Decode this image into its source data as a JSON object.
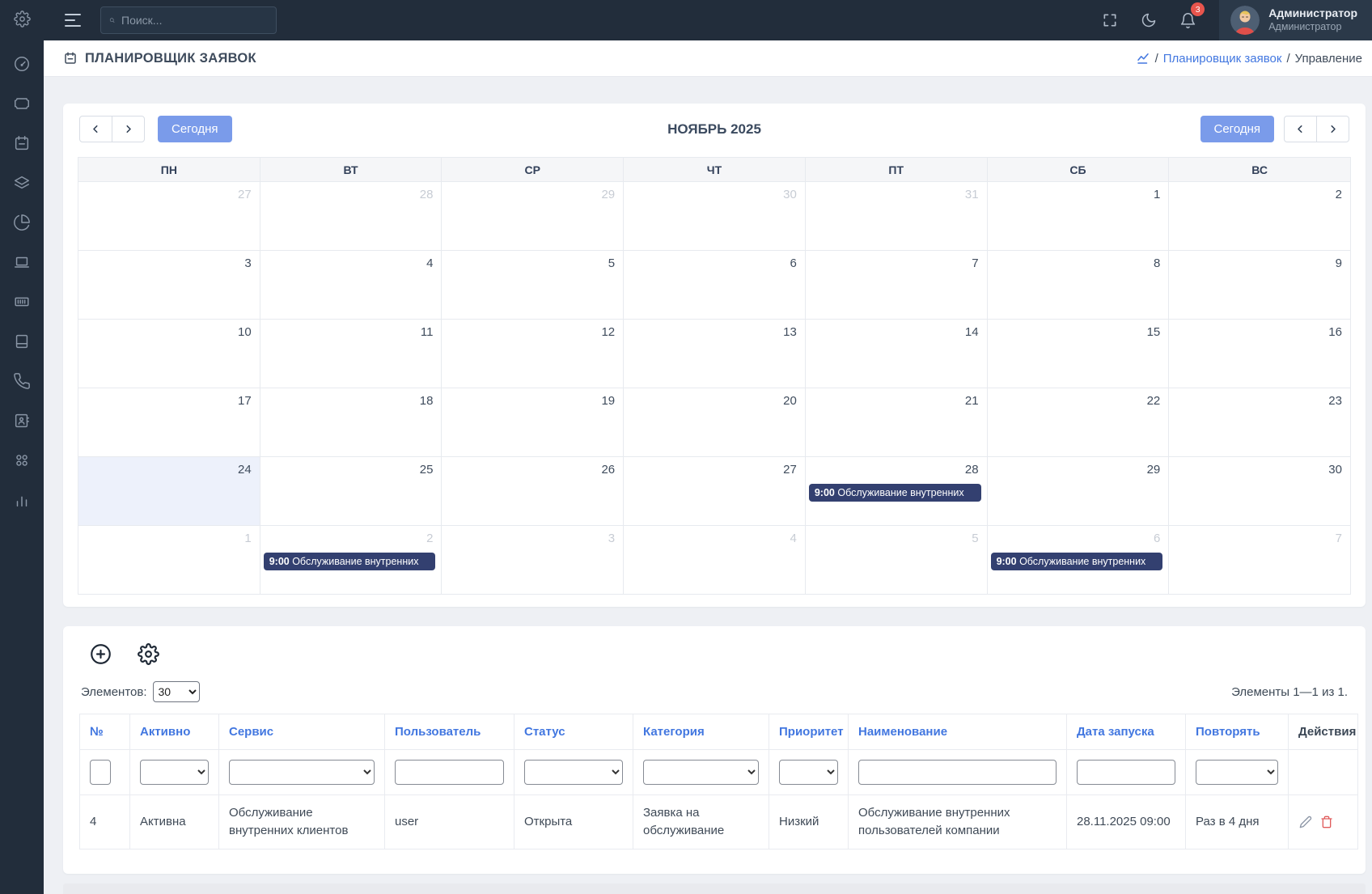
{
  "colors": {
    "sidebar-bg": "#222d3b",
    "topbar-user-bg": "#2b3949",
    "accent-blue": "#7a9bea",
    "link-blue": "#4277e0",
    "event-navy": "#334070",
    "badge-red": "#e8554d",
    "today-bg": "#edf1fb",
    "page-bg": "#eef0f4",
    "text-dark": "#3d4a5c",
    "muted-day": "#c7ccd4"
  },
  "topbar": {
    "search_placeholder": "Поиск...",
    "notification_count": "3",
    "user_name": "Администратор",
    "user_role": "Администратор",
    "icons": [
      "menu-icon",
      "search-icon",
      "fullscreen-icon",
      "dark-mode-icon",
      "notifications-icon"
    ]
  },
  "sidebar": {
    "icons": [
      "gear-icon",
      "dashboard-icon",
      "ticket-icon",
      "calendar-icon",
      "layers-icon",
      "pie-chart-icon",
      "laptop-icon",
      "barcode-icon",
      "book-icon",
      "phone-icon",
      "id-card-icon",
      "apps-grid-icon",
      "bar-chart-icon"
    ]
  },
  "page_header": {
    "title": "ПЛАНИРОВЩИК ЗАЯВОК",
    "title_icon": "calendar-icon",
    "breadcrumb": {
      "home_icon": "chart-icon",
      "separator": "/",
      "link": "Планировщик заявок",
      "current": "Управление"
    }
  },
  "calendar": {
    "title": "НОЯБРЬ 2025",
    "today_label": "Сегодня",
    "day_headers": [
      "ПН",
      "ВТ",
      "СР",
      "ЧТ",
      "ПТ",
      "СБ",
      "ВС"
    ],
    "weeks": [
      [
        {
          "n": 27,
          "muted": true
        },
        {
          "n": 28,
          "muted": true
        },
        {
          "n": 29,
          "muted": true
        },
        {
          "n": 30,
          "muted": true
        },
        {
          "n": 31,
          "muted": true
        },
        {
          "n": 1
        },
        {
          "n": 2
        }
      ],
      [
        {
          "n": 3
        },
        {
          "n": 4
        },
        {
          "n": 5
        },
        {
          "n": 6
        },
        {
          "n": 7
        },
        {
          "n": 8
        },
        {
          "n": 9
        }
      ],
      [
        {
          "n": 10
        },
        {
          "n": 11
        },
        {
          "n": 12
        },
        {
          "n": 13
        },
        {
          "n": 14
        },
        {
          "n": 15
        },
        {
          "n": 16
        }
      ],
      [
        {
          "n": 17
        },
        {
          "n": 18
        },
        {
          "n": 19
        },
        {
          "n": 20
        },
        {
          "n": 21
        },
        {
          "n": 22
        },
        {
          "n": 23
        }
      ],
      [
        {
          "n": 24,
          "today": true
        },
        {
          "n": 25
        },
        {
          "n": 26
        },
        {
          "n": 27
        },
        {
          "n": 28,
          "event": {
            "time": "9:00",
            "title": "Обслуживание внутренних"
          }
        },
        {
          "n": 29
        },
        {
          "n": 30
        }
      ],
      [
        {
          "n": 1,
          "muted": true
        },
        {
          "n": 2,
          "muted": true,
          "event": {
            "time": "9:00",
            "title": "Обслуживание внутренних"
          }
        },
        {
          "n": 3,
          "muted": true
        },
        {
          "n": 4,
          "muted": true
        },
        {
          "n": 5,
          "muted": true
        },
        {
          "n": 6,
          "muted": true,
          "event": {
            "time": "9:00",
            "title": "Обслуживание внутренних"
          }
        },
        {
          "n": 7,
          "muted": true
        }
      ]
    ]
  },
  "table": {
    "toolbar_icons": [
      "add-icon",
      "settings-icon"
    ],
    "page_size_label": "Элементов:",
    "page_size_value": "30",
    "summary": "Элементы 1—1 из 1.",
    "columns": [
      {
        "key": "num",
        "label": "№",
        "sortable": true,
        "filter": "input-small"
      },
      {
        "key": "active",
        "label": "Активно",
        "sortable": true,
        "filter": "select"
      },
      {
        "key": "service",
        "label": "Сервис",
        "sortable": true,
        "filter": "select"
      },
      {
        "key": "user",
        "label": "Пользователь",
        "sortable": true,
        "filter": "input"
      },
      {
        "key": "status",
        "label": "Статус",
        "sortable": true,
        "filter": "select"
      },
      {
        "key": "category",
        "label": "Категория",
        "sortable": true,
        "filter": "select"
      },
      {
        "key": "priority",
        "label": "Приоритет",
        "sortable": true,
        "filter": "select"
      },
      {
        "key": "name",
        "label": "Наименование",
        "sortable": true,
        "filter": "input"
      },
      {
        "key": "start_date",
        "label": "Дата запуска",
        "sortable": true,
        "filter": "input"
      },
      {
        "key": "repeat",
        "label": "Повторять",
        "sortable": true,
        "filter": "select"
      },
      {
        "key": "actions",
        "label": "Действия",
        "sortable": false,
        "filter": "none"
      }
    ],
    "rows": [
      {
        "cells": [
          "4",
          "Активна",
          "Обслуживание внутренних клиентов",
          "user",
          "Открыта",
          "Заявка на обслуживание",
          "Низкий",
          "Обслуживание внутренних пользователей компании",
          "28.11.2025 09:00",
          "Раз в 4 дня"
        ],
        "actions": [
          "edit-icon",
          "delete-icon"
        ]
      }
    ]
  }
}
